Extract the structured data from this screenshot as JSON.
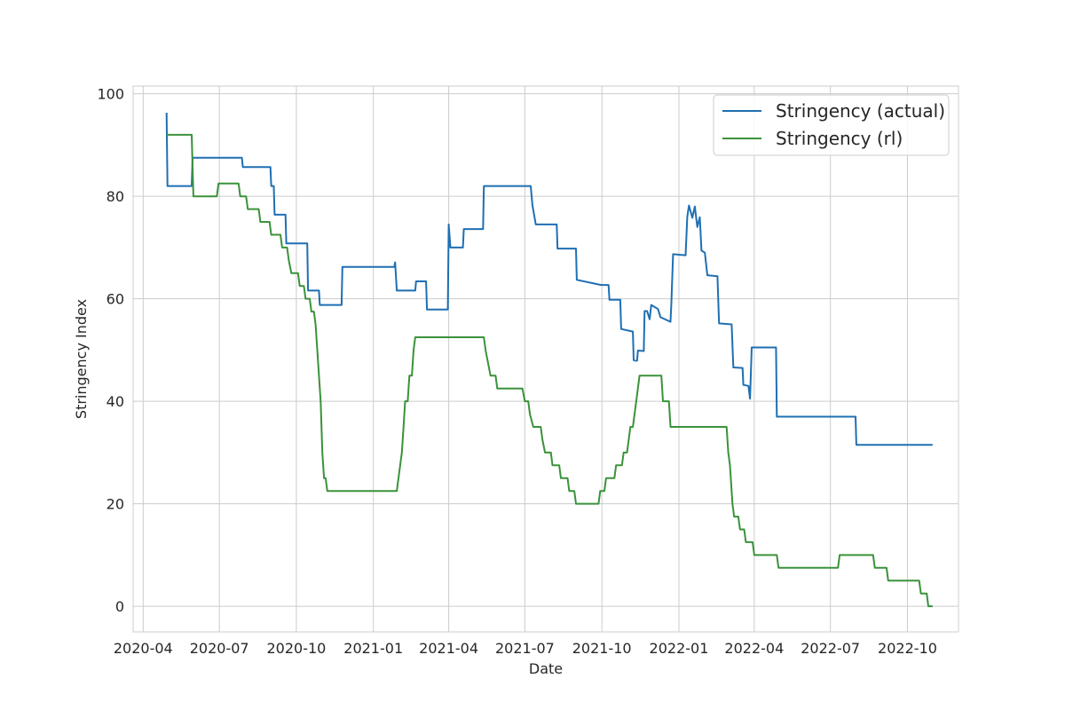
{
  "chart_data": {
    "type": "line",
    "xlabel": "Date",
    "ylabel": "Stringency Index",
    "xlim": [
      "2020-03-20",
      "2022-12-01"
    ],
    "ylim": [
      -5,
      101.5
    ],
    "x_ticks": [
      "2020-04",
      "2020-07",
      "2020-10",
      "2021-01",
      "2021-04",
      "2021-07",
      "2021-10",
      "2022-01",
      "2022-04",
      "2022-07",
      "2022-10"
    ],
    "y_ticks": [
      0,
      20,
      40,
      60,
      80,
      100
    ],
    "grid": true,
    "legend_position": "upper-right",
    "series": [
      {
        "name": "Stringency (actual)",
        "color": "#1f6fb2",
        "points": [
          [
            "2020-04-29",
            96.3
          ],
          [
            "2020-04-30",
            82.0
          ],
          [
            "2020-05-29",
            82.0
          ],
          [
            "2020-05-30",
            87.5
          ],
          [
            "2020-07-28",
            87.5
          ],
          [
            "2020-07-29",
            85.7
          ],
          [
            "2020-08-31",
            85.7
          ],
          [
            "2020-09-01",
            82.0
          ],
          [
            "2020-09-04",
            82.0
          ],
          [
            "2020-09-05",
            76.4
          ],
          [
            "2020-09-18",
            76.4
          ],
          [
            "2020-09-19",
            70.8
          ],
          [
            "2020-10-14",
            70.8
          ],
          [
            "2020-10-15",
            61.6
          ],
          [
            "2020-10-28",
            61.6
          ],
          [
            "2020-10-29",
            58.8
          ],
          [
            "2020-11-24",
            58.8
          ],
          [
            "2020-11-25",
            66.2
          ],
          [
            "2021-01-26",
            66.2
          ],
          [
            "2021-01-27",
            67.1
          ],
          [
            "2021-01-29",
            61.6
          ],
          [
            "2021-02-20",
            61.6
          ],
          [
            "2021-02-21",
            63.4
          ],
          [
            "2021-03-05",
            63.4
          ],
          [
            "2021-03-06",
            57.9
          ],
          [
            "2021-03-31",
            57.9
          ],
          [
            "2021-04-01",
            74.5
          ],
          [
            "2021-04-03",
            70.0
          ],
          [
            "2021-04-18",
            70.0
          ],
          [
            "2021-04-19",
            73.6
          ],
          [
            "2021-05-12",
            73.6
          ],
          [
            "2021-05-13",
            82.0
          ],
          [
            "2021-07-08",
            82.0
          ],
          [
            "2021-07-10",
            78.3
          ],
          [
            "2021-07-14",
            74.5
          ],
          [
            "2021-08-08",
            74.5
          ],
          [
            "2021-08-09",
            69.8
          ],
          [
            "2021-08-31",
            69.8
          ],
          [
            "2021-09-01",
            63.7
          ],
          [
            "2021-09-30",
            62.7
          ],
          [
            "2021-10-09",
            62.7
          ],
          [
            "2021-10-10",
            59.8
          ],
          [
            "2021-10-23",
            59.8
          ],
          [
            "2021-10-24",
            54.1
          ],
          [
            "2021-11-07",
            53.6
          ],
          [
            "2021-11-08",
            48.0
          ],
          [
            "2021-11-12",
            47.9
          ],
          [
            "2021-11-13",
            49.9
          ],
          [
            "2021-11-20",
            49.8
          ],
          [
            "2021-11-21",
            57.6
          ],
          [
            "2021-11-24",
            57.6
          ],
          [
            "2021-11-27",
            56.0
          ],
          [
            "2021-11-29",
            58.8
          ],
          [
            "2021-12-07",
            58.0
          ],
          [
            "2021-12-10",
            56.4
          ],
          [
            "2021-12-22",
            55.5
          ],
          [
            "2021-12-23",
            59.3
          ],
          [
            "2021-12-25",
            68.7
          ],
          [
            "2022-01-09",
            68.5
          ],
          [
            "2022-01-11",
            76.0
          ],
          [
            "2022-01-13",
            78.2
          ],
          [
            "2022-01-17",
            75.8
          ],
          [
            "2022-01-20",
            78.0
          ],
          [
            "2022-01-23",
            74.0
          ],
          [
            "2022-01-26",
            75.9
          ],
          [
            "2022-01-28",
            69.4
          ],
          [
            "2022-02-01",
            69.0
          ],
          [
            "2022-02-04",
            64.6
          ],
          [
            "2022-02-16",
            64.4
          ],
          [
            "2022-02-18",
            55.2
          ],
          [
            "2022-03-05",
            55.0
          ],
          [
            "2022-03-07",
            46.6
          ],
          [
            "2022-03-18",
            46.5
          ],
          [
            "2022-03-19",
            43.2
          ],
          [
            "2022-03-25",
            43.0
          ],
          [
            "2022-03-27",
            40.5
          ],
          [
            "2022-03-29",
            50.5
          ],
          [
            "2022-04-27",
            50.5
          ],
          [
            "2022-04-28",
            37.0
          ],
          [
            "2022-07-31",
            37.0
          ],
          [
            "2022-08-01",
            31.5
          ],
          [
            "2022-10-31",
            31.5
          ]
        ]
      },
      {
        "name": "Stringency (rl)",
        "color": "#3a923a",
        "points": [
          [
            "2020-04-29",
            92.0
          ],
          [
            "2020-05-29",
            92.0
          ],
          [
            "2020-05-31",
            80.0
          ],
          [
            "2020-06-28",
            80.0
          ],
          [
            "2020-06-30",
            82.5
          ],
          [
            "2020-07-24",
            82.5
          ],
          [
            "2020-07-26",
            80.0
          ],
          [
            "2020-08-02",
            80.0
          ],
          [
            "2020-08-04",
            77.5
          ],
          [
            "2020-08-17",
            77.5
          ],
          [
            "2020-08-19",
            75.0
          ],
          [
            "2020-08-30",
            75.0
          ],
          [
            "2020-09-01",
            72.5
          ],
          [
            "2020-09-12",
            72.5
          ],
          [
            "2020-09-14",
            70.0
          ],
          [
            "2020-09-20",
            70.0
          ],
          [
            "2020-09-22",
            67.5
          ],
          [
            "2020-09-25",
            65.0
          ],
          [
            "2020-10-03",
            65.0
          ],
          [
            "2020-10-05",
            62.5
          ],
          [
            "2020-10-10",
            62.5
          ],
          [
            "2020-10-12",
            60.0
          ],
          [
            "2020-10-17",
            60.0
          ],
          [
            "2020-10-19",
            57.5
          ],
          [
            "2020-10-22",
            57.5
          ],
          [
            "2020-10-24",
            55.0
          ],
          [
            "2020-10-26",
            50.0
          ],
          [
            "2020-10-28",
            45.0
          ],
          [
            "2020-10-30",
            40.0
          ],
          [
            "2020-11-01",
            30.0
          ],
          [
            "2020-11-03",
            25.0
          ],
          [
            "2020-11-05",
            25.0
          ],
          [
            "2020-11-07",
            22.5
          ],
          [
            "2021-01-29",
            22.5
          ],
          [
            "2021-01-31",
            25.0
          ],
          [
            "2021-02-02",
            27.5
          ],
          [
            "2021-02-04",
            30.0
          ],
          [
            "2021-02-06",
            35.0
          ],
          [
            "2021-02-08",
            40.0
          ],
          [
            "2021-02-11",
            40.0
          ],
          [
            "2021-02-13",
            45.0
          ],
          [
            "2021-02-16",
            45.0
          ],
          [
            "2021-02-18",
            50.0
          ],
          [
            "2021-02-20",
            52.5
          ],
          [
            "2021-05-13",
            52.5
          ],
          [
            "2021-05-15",
            50.0
          ],
          [
            "2021-05-18",
            47.5
          ],
          [
            "2021-05-21",
            45.0
          ],
          [
            "2021-05-27",
            45.0
          ],
          [
            "2021-05-29",
            42.5
          ],
          [
            "2021-06-28",
            42.5
          ],
          [
            "2021-07-01",
            40.0
          ],
          [
            "2021-07-05",
            40.0
          ],
          [
            "2021-07-07",
            37.5
          ],
          [
            "2021-07-11",
            35.0
          ],
          [
            "2021-07-20",
            35.0
          ],
          [
            "2021-07-22",
            32.5
          ],
          [
            "2021-07-25",
            30.0
          ],
          [
            "2021-08-01",
            30.0
          ],
          [
            "2021-08-03",
            27.5
          ],
          [
            "2021-08-11",
            27.5
          ],
          [
            "2021-08-13",
            25.0
          ],
          [
            "2021-08-21",
            25.0
          ],
          [
            "2021-08-23",
            22.5
          ],
          [
            "2021-08-29",
            22.5
          ],
          [
            "2021-08-31",
            20.0
          ],
          [
            "2021-09-27",
            20.0
          ],
          [
            "2021-09-29",
            22.5
          ],
          [
            "2021-10-04",
            22.5
          ],
          [
            "2021-10-06",
            25.0
          ],
          [
            "2021-10-16",
            25.0
          ],
          [
            "2021-10-18",
            27.5
          ],
          [
            "2021-10-25",
            27.5
          ],
          [
            "2021-10-27",
            30.0
          ],
          [
            "2021-10-31",
            30.0
          ],
          [
            "2021-11-02",
            32.5
          ],
          [
            "2021-11-04",
            35.0
          ],
          [
            "2021-11-07",
            35.0
          ],
          [
            "2021-11-09",
            37.5
          ],
          [
            "2021-11-11",
            40.0
          ],
          [
            "2021-11-15",
            45.0
          ],
          [
            "2021-12-11",
            45.0
          ],
          [
            "2021-12-13",
            40.0
          ],
          [
            "2021-12-20",
            40.0
          ],
          [
            "2021-12-22",
            35.0
          ],
          [
            "2022-02-27",
            35.0
          ],
          [
            "2022-03-01",
            30.0
          ],
          [
            "2022-03-03",
            27.5
          ],
          [
            "2022-03-06",
            20.0
          ],
          [
            "2022-03-08",
            17.5
          ],
          [
            "2022-03-13",
            17.5
          ],
          [
            "2022-03-15",
            15.0
          ],
          [
            "2022-03-20",
            15.0
          ],
          [
            "2022-03-22",
            12.5
          ],
          [
            "2022-03-30",
            12.5
          ],
          [
            "2022-04-01",
            10.0
          ],
          [
            "2022-04-28",
            10.0
          ],
          [
            "2022-04-30",
            7.5
          ],
          [
            "2022-07-10",
            7.5
          ],
          [
            "2022-07-12",
            10.0
          ],
          [
            "2022-08-21",
            10.0
          ],
          [
            "2022-08-23",
            7.5
          ],
          [
            "2022-09-06",
            7.5
          ],
          [
            "2022-09-08",
            5.0
          ],
          [
            "2022-10-15",
            5.0
          ],
          [
            "2022-10-17",
            2.5
          ],
          [
            "2022-10-24",
            2.5
          ],
          [
            "2022-10-26",
            0.0
          ],
          [
            "2022-10-31",
            0.0
          ]
        ]
      }
    ]
  }
}
